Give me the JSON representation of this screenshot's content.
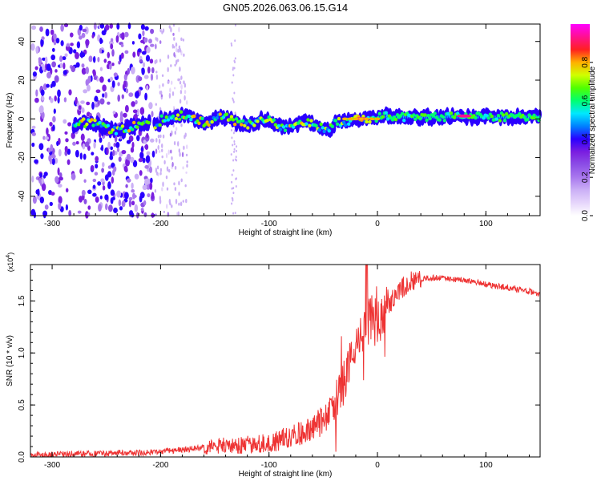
{
  "title": "GN05.2026.063.06.15.G14",
  "colors": {
    "snr_line": "#ee3333",
    "background": "#ffffff",
    "colormap": [
      "#ffffff",
      "#e6d6fb",
      "#cbb0f6",
      "#a978ee",
      "#8c4ee6",
      "#7a1ee0",
      "#2a00ff",
      "#0080ff",
      "#00e8ff",
      "#00ff70",
      "#50ff00",
      "#d0ff00",
      "#ffb000",
      "#ff2020",
      "#ff1090",
      "#ff00ff"
    ]
  },
  "chart_data": [
    {
      "type": "heatmap",
      "title": "GN05.2026.063.06.15.G14",
      "xlabel": "Height of straight line (km)",
      "ylabel": "Frequency (Hz)",
      "xlim": [
        -320,
        150
      ],
      "ylim": [
        -50,
        49
      ],
      "xticks": [
        -300,
        -200,
        -100,
        0,
        100
      ],
      "yticks": [
        -40,
        -20,
        0,
        20,
        40
      ],
      "colorbar": {
        "label": "Normalized spectral amplitude",
        "range": [
          0,
          1
        ],
        "ticks": [
          0.0,
          0.2,
          0.4,
          0.6,
          0.8
        ]
      },
      "features": [
        {
          "name": "noise region",
          "x_range": [
            -320,
            -205
          ],
          "freq_range": [
            -50,
            49
          ],
          "amplitude": 0.1
        },
        {
          "name": "sparse noise",
          "x_range": [
            -205,
            -130
          ],
          "freq_range": [
            -50,
            49
          ],
          "amplitude": 0.05
        },
        {
          "name": "signal band",
          "x_range": [
            -280,
            150
          ],
          "center_freq_hz": 0,
          "amplitude_range": [
            0.3,
            0.95
          ]
        },
        {
          "name": "strong peak",
          "x": 80,
          "freq": 1.5,
          "amplitude": 0.95
        },
        {
          "name": "strong peak",
          "x": -15,
          "freq": 0,
          "amplitude": 0.9
        }
      ]
    },
    {
      "type": "line",
      "xlabel": "Height of straight line (km)",
      "ylabel": "SNR (10 * v/v)",
      "yscale_label": "(x10",
      "yscale_exponent": "4",
      "xlim": [
        -320,
        150
      ],
      "ylim": [
        0,
        1.85
      ],
      "xticks": [
        -300,
        -200,
        -100,
        0,
        100
      ],
      "yticks": [
        0.0,
        0.5,
        1.0,
        1.5
      ],
      "series": [
        {
          "name": "SNR",
          "x": [
            -320,
            -300,
            -280,
            -260,
            -240,
            -220,
            -200,
            -180,
            -160,
            -140,
            -120,
            -100,
            -90,
            -80,
            -70,
            -60,
            -50,
            -40,
            -35,
            -30,
            -25,
            -20,
            -15,
            -10,
            -5,
            0,
            10,
            20,
            30,
            40,
            50,
            60,
            70,
            80,
            90,
            100,
            110,
            120,
            130,
            140,
            150
          ],
          "values": [
            0.02,
            0.02,
            0.03,
            0.03,
            0.04,
            0.04,
            0.05,
            0.07,
            0.09,
            0.11,
            0.12,
            0.13,
            0.16,
            0.2,
            0.23,
            0.27,
            0.35,
            0.5,
            0.6,
            0.75,
            0.9,
            1.05,
            1.15,
            1.25,
            1.35,
            1.28,
            1.45,
            1.6,
            1.68,
            1.71,
            1.72,
            1.72,
            1.71,
            1.7,
            1.68,
            1.66,
            1.64,
            1.63,
            1.61,
            1.59,
            1.57
          ]
        }
      ]
    }
  ]
}
